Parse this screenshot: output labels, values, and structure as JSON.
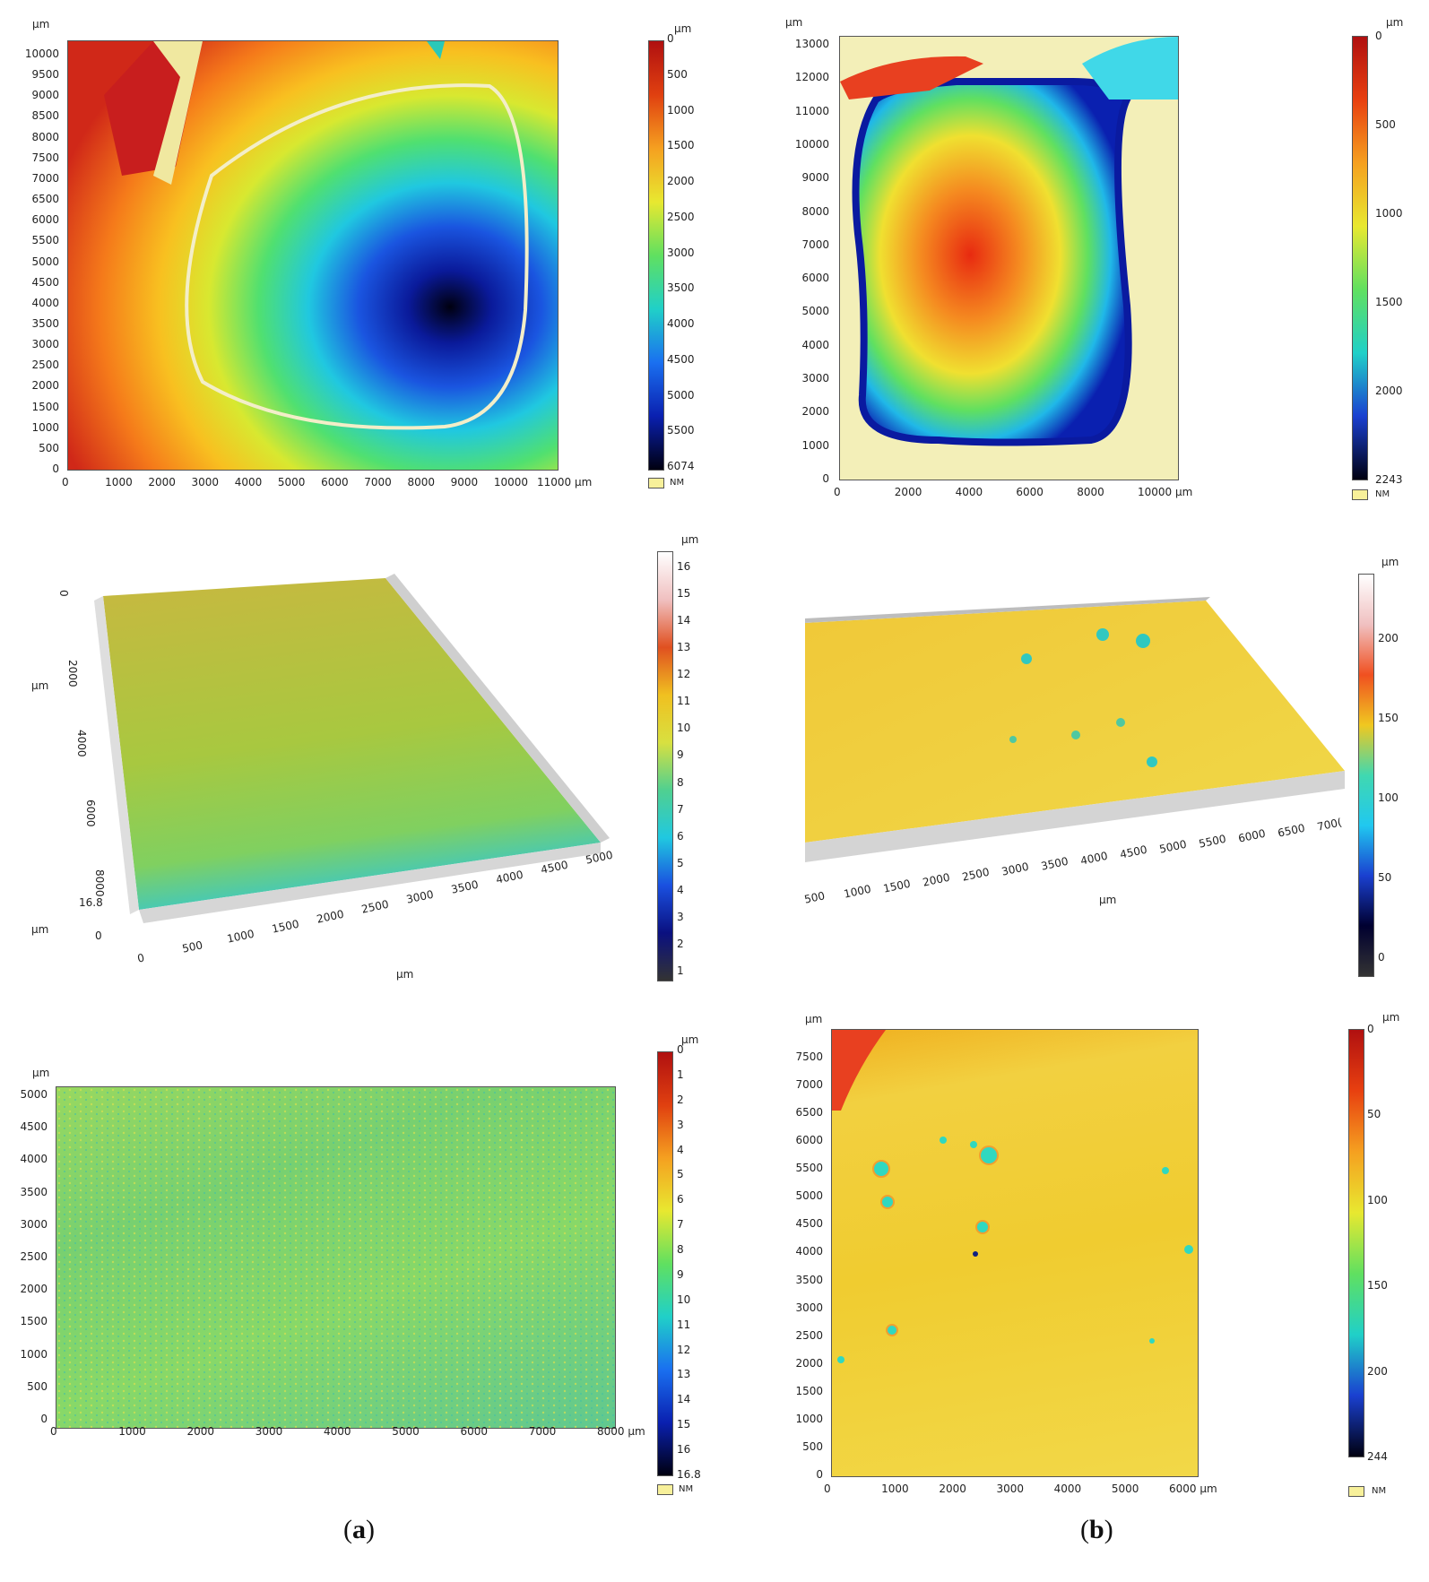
{
  "captions": {
    "a_open": "(",
    "a_letter": "a",
    "a_close": ")",
    "b_open": "(",
    "b_letter": "b",
    "b_close": ")"
  },
  "panel_a1": {
    "unit_top": "µm",
    "cbar_unit": "µm",
    "nm": "NM",
    "y_ticks": [
      "10000",
      "9500",
      "9000",
      "8500",
      "8000",
      "7500",
      "7000",
      "6500",
      "6000",
      "5500",
      "5000",
      "4500",
      "4000",
      "3500",
      "3000",
      "2500",
      "2000",
      "1500",
      "1000",
      "500",
      "0"
    ],
    "x_ticks": [
      "0",
      "1000",
      "2000",
      "3000",
      "4000",
      "5000",
      "6000",
      "7000",
      "8000",
      "9000",
      "10000",
      "11000 µm"
    ],
    "cbar_ticks": [
      "0",
      "500",
      "1000",
      "1500",
      "2000",
      "2500",
      "3000",
      "3500",
      "4000",
      "4500",
      "5000",
      "5500",
      "6074"
    ]
  },
  "panel_b1": {
    "unit_top": "µm",
    "cbar_unit": "µm",
    "nm": "NM",
    "y_ticks": [
      "13000",
      "12000",
      "11000",
      "10000",
      "9000",
      "8000",
      "7000",
      "6000",
      "5000",
      "4000",
      "3000",
      "2000",
      "1000",
      "0"
    ],
    "x_ticks": [
      "0",
      "2000",
      "4000",
      "6000",
      "8000",
      "10000 µm"
    ],
    "cbar_ticks": [
      "0",
      "500",
      "1000",
      "1500",
      "2000",
      "2243"
    ]
  },
  "panel_a2": {
    "cbar_unit": "µm",
    "cbar_ticks": [
      "16",
      "15",
      "14",
      "13",
      "12",
      "11",
      "10",
      "9",
      "8",
      "7",
      "6",
      "5",
      "4",
      "3",
      "2",
      "1"
    ],
    "y_ticks": [
      "0",
      "2000",
      "4000",
      "6000",
      "8000"
    ],
    "y_unit": "µm",
    "z_ticks": [
      "16.8",
      "0"
    ],
    "z_unit": "µm",
    "x_ticks": [
      "0",
      "500",
      "1000",
      "1500",
      "2000",
      "2500",
      "3000",
      "3500",
      "4000",
      "4500",
      "5000"
    ],
    "x_unit": "µm"
  },
  "panel_b2": {
    "cbar_unit": "µm",
    "cbar_ticks": [
      "200",
      "150",
      "100",
      "50",
      "0"
    ],
    "x_ticks": [
      "500",
      "1000",
      "1500",
      "2000",
      "2500",
      "3000",
      "3500",
      "4000",
      "4500",
      "5000",
      "5500",
      "6000",
      "6500",
      "700("
    ],
    "x_unit": "µm"
  },
  "panel_a3": {
    "unit_top": "µm",
    "cbar_unit": "µm",
    "nm": "NM",
    "y_ticks": [
      "5000",
      "4500",
      "4000",
      "3500",
      "3000",
      "2500",
      "2000",
      "1500",
      "1000",
      "500",
      "0"
    ],
    "x_ticks": [
      "0",
      "1000",
      "2000",
      "3000",
      "4000",
      "5000",
      "6000",
      "7000",
      "8000 µm"
    ],
    "cbar_ticks": [
      "0",
      "1",
      "2",
      "3",
      "4",
      "5",
      "6",
      "7",
      "8",
      "9",
      "10",
      "11",
      "12",
      "13",
      "14",
      "15",
      "16",
      "16.8"
    ]
  },
  "panel_b3": {
    "unit_top": "µm",
    "cbar_unit": "µm",
    "nm": "NM",
    "y_ticks": [
      "7500",
      "7000",
      "6500",
      "6000",
      "5500",
      "5000",
      "4500",
      "4000",
      "3500",
      "3000",
      "2500",
      "2000",
      "1500",
      "1000",
      "500",
      "0"
    ],
    "x_ticks": [
      "0",
      "1000",
      "2000",
      "3000",
      "4000",
      "5000",
      "6000 µm"
    ],
    "cbar_ticks": [
      "0",
      "50",
      "100",
      "150",
      "200",
      "244"
    ]
  }
}
